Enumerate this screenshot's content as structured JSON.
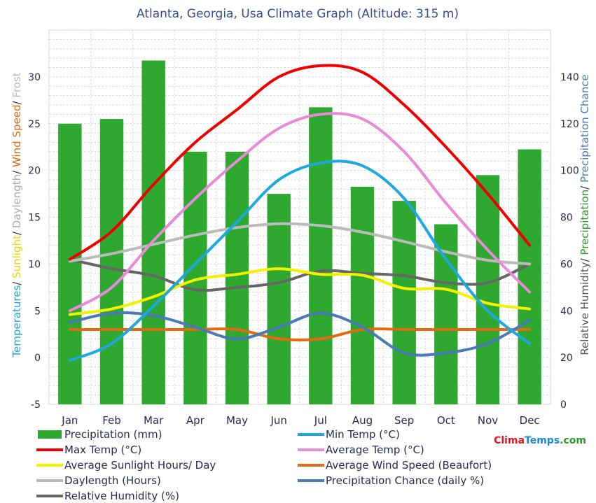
{
  "chart_data": {
    "type": "bar+line",
    "title": "Atlanta, Georgia, Usa Climate Graph (Altitude: 315 m)",
    "categories": [
      "Jan",
      "Feb",
      "Mar",
      "Apr",
      "May",
      "Jun",
      "Jul",
      "Aug",
      "Sep",
      "Oct",
      "Nov",
      "Dec"
    ],
    "left_axis": {
      "range": [
        -5,
        35
      ],
      "ticks": [
        -5,
        0,
        5,
        10,
        15,
        20,
        25,
        30
      ],
      "label_parts": [
        {
          "text": "Temperatures",
          "color": "#1ea8e0"
        },
        {
          "text": "/ ",
          "color": "#333333"
        },
        {
          "text": "Sunlight",
          "color": "#e6d800"
        },
        {
          "text": "/ ",
          "color": "#333333"
        },
        {
          "text": "Daylength",
          "color": "#aaaaaa"
        },
        {
          "text": "/ ",
          "color": "#333333"
        },
        {
          "text": "Wind Speed",
          "color": "#e06b10"
        },
        {
          "text": "/ ",
          "color": "#333333"
        },
        {
          "text": "Frost",
          "color": "#bbbbbb"
        }
      ]
    },
    "right_axis": {
      "range": [
        0,
        160
      ],
      "ticks": [
        0,
        20,
        40,
        60,
        80,
        100,
        120,
        140
      ],
      "label_parts": [
        {
          "text": "Relative Humidity",
          "color": "#555555"
        },
        {
          "text": "/ ",
          "color": "#333333"
        },
        {
          "text": "Precipitation",
          "color": "#2a9a2a"
        },
        {
          "text": "/ ",
          "color": "#333333"
        },
        {
          "text": "Precipitation Chance",
          "color": "#4a7ab5"
        }
      ]
    },
    "bars": {
      "name": "Precipitation (mm)",
      "axis": "right",
      "color": "#2ea82e",
      "values": [
        120,
        122,
        147,
        108,
        108,
        90,
        127,
        93,
        87,
        77,
        98,
        109
      ]
    },
    "series": [
      {
        "name": "Max Temp (°C)",
        "axis": "left",
        "color": "#ee0000",
        "values": [
          10.5,
          13.5,
          18.5,
          23,
          26.5,
          30,
          31.2,
          30.5,
          27,
          22.5,
          17.5,
          12
        ]
      },
      {
        "name": "Min Temp (°C)",
        "axis": "left",
        "color": "#1ea8e0",
        "values": [
          -0.3,
          1.5,
          5.5,
          10,
          14.5,
          19,
          20.8,
          20.5,
          17,
          10.5,
          5,
          1.5
        ]
      },
      {
        "name": "Average Temp (°C)",
        "axis": "left",
        "color": "#e88ad8",
        "values": [
          5,
          7.5,
          12.5,
          17,
          21,
          24.5,
          26,
          25.5,
          22,
          16.5,
          11.5,
          7
        ]
      },
      {
        "name": "Average Sunlight Hours/ Day",
        "axis": "left",
        "color": "#f2f200",
        "values": [
          4.6,
          5.2,
          6.5,
          8.3,
          8.9,
          9.5,
          8.9,
          8.8,
          7.4,
          7.3,
          5.8,
          5.2
        ]
      },
      {
        "name": "Average Wind Speed (Beaufort)",
        "axis": "left",
        "color": "#e06b10",
        "values": [
          3,
          3,
          3,
          3,
          3,
          2,
          2,
          3,
          3,
          3,
          3,
          3
        ]
      },
      {
        "name": "Daylength (Hours)",
        "axis": "left",
        "color": "#bbbbbb",
        "values": [
          10.3,
          11.1,
          12.1,
          13.1,
          13.9,
          14.3,
          14.1,
          13.4,
          12.4,
          11.3,
          10.4,
          10
        ]
      },
      {
        "name": "Precipitation Chance (daily %)",
        "axis": "right",
        "color": "#4a7ab5",
        "values": [
          35,
          39,
          38,
          33,
          28,
          33,
          39,
          33,
          22,
          22,
          26,
          36
        ]
      },
      {
        "name": "Relative Humidity (%)",
        "axis": "right",
        "color": "#666666",
        "values": [
          62,
          58,
          55,
          49,
          50,
          52,
          57,
          56,
          55,
          52,
          52,
          60
        ]
      }
    ],
    "legend": {
      "placement": "bottom",
      "items": [
        {
          "label": "Precipitation (mm)",
          "color": "#2ea82e",
          "kind": "bar"
        },
        {
          "label": "Min Temp (°C)",
          "color": "#1ea8e0",
          "kind": "line"
        },
        {
          "label": "Max Temp (°C)",
          "color": "#ee0000",
          "kind": "line"
        },
        {
          "label": "Average Temp (°C)",
          "color": "#e88ad8",
          "kind": "line"
        },
        {
          "label": "Average Sunlight Hours/ Day",
          "color": "#f2f200",
          "kind": "line"
        },
        {
          "label": "Average Wind Speed (Beaufort)",
          "color": "#e06b10",
          "kind": "line"
        },
        {
          "label": "Daylength (Hours)",
          "color": "#bbbbbb",
          "kind": "line"
        },
        {
          "label": "Precipitation Chance (daily %)",
          "color": "#4a7ab5",
          "kind": "line"
        },
        {
          "label": "Relative Humidity (%)",
          "color": "#666666",
          "kind": "line"
        }
      ]
    },
    "grid": true
  },
  "brand": {
    "parts": [
      {
        "text": "Clima",
        "color": "#e8141e"
      },
      {
        "text": "Temps",
        "color": "#1a8ad4"
      },
      {
        "text": ".com",
        "color": "#2a9a2a"
      }
    ]
  }
}
